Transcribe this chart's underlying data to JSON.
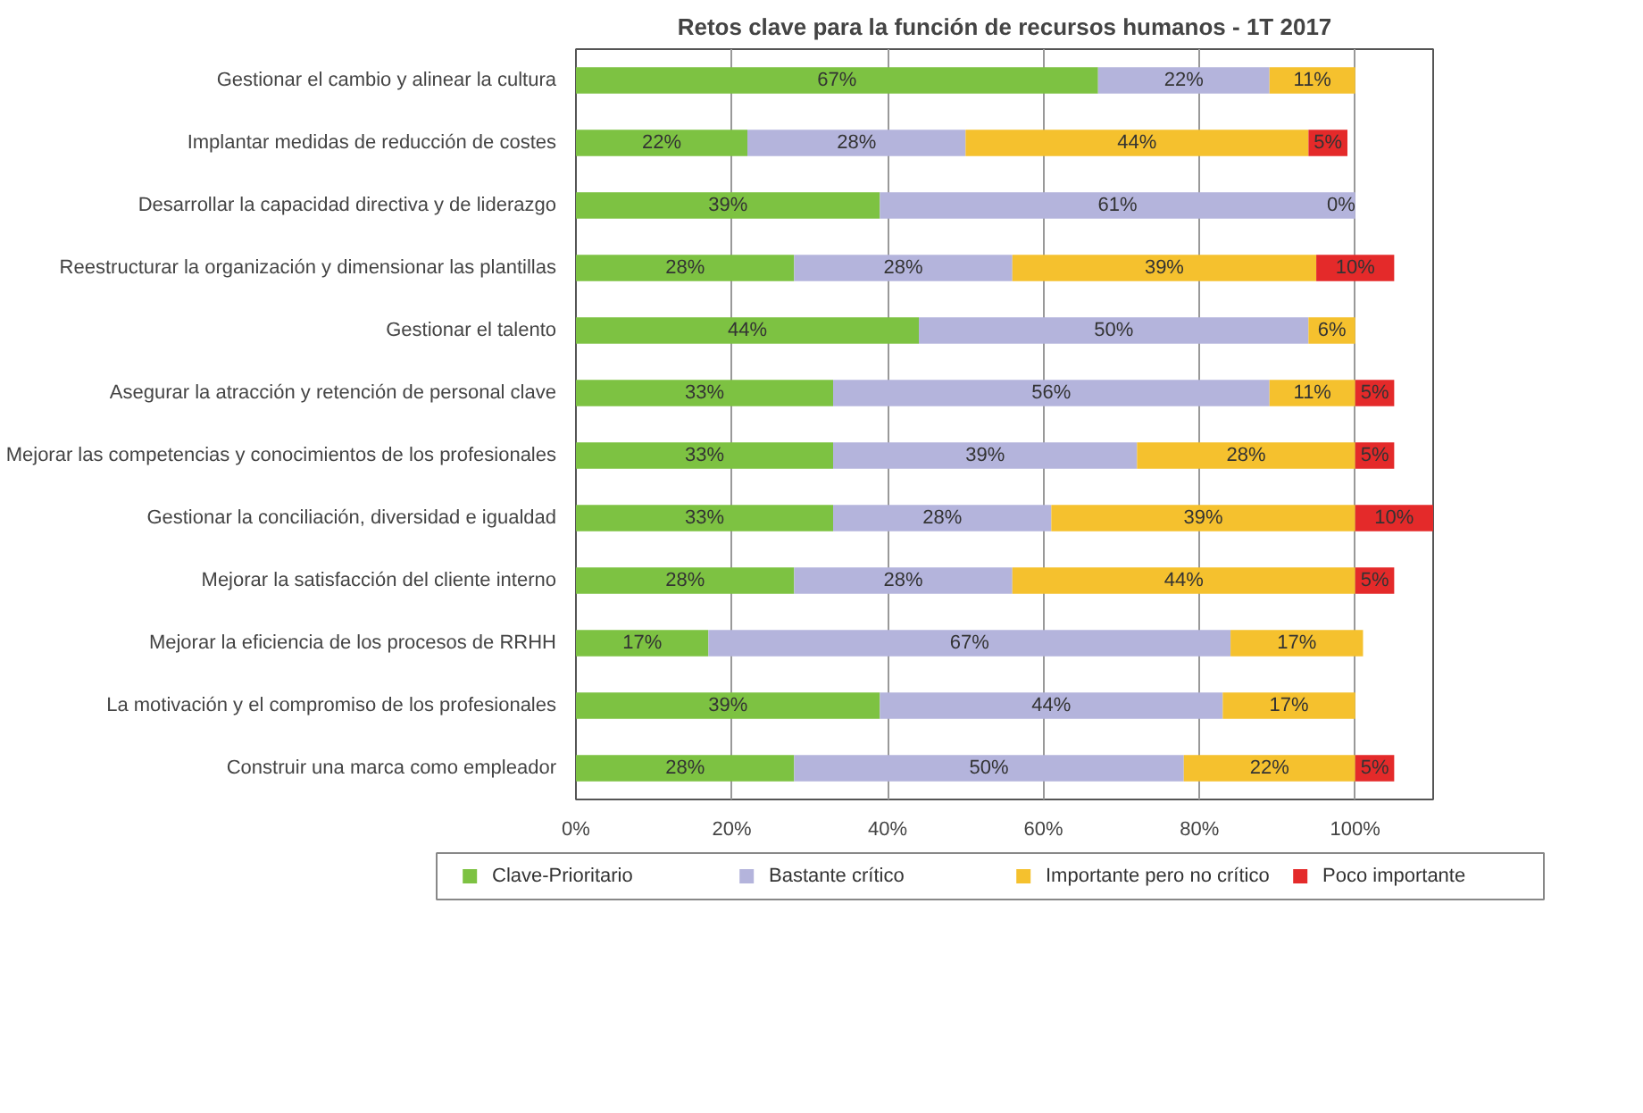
{
  "chart_data": {
    "type": "bar",
    "orientation": "horizontal",
    "stacked": true,
    "title": "Retos clave para la función de recursos humanos - 1T 2017",
    "categories": [
      "Gestionar el cambio y alinear la cultura",
      "Implantar medidas de reducción de costes",
      "Desarrollar la capacidad directiva y de liderazgo",
      "Reestructurar la organización y dimensionar las plantillas",
      "Gestionar el talento",
      "Asegurar la atracción y retención de personal clave",
      "Mejorar las competencias y conocimientos de los profesionales",
      "Gestionar la conciliación, diversidad e igualdad",
      "Mejorar la satisfacción del cliente interno",
      "Mejorar la eficiencia de los procesos de RRHH",
      "La motivación y el compromiso de los profesionales",
      "Construir una marca como empleador"
    ],
    "series": [
      {
        "name": "Clave-Prioritario",
        "color": "#7dc242",
        "values": [
          67,
          22,
          39,
          28,
          44,
          33,
          33,
          33,
          28,
          17,
          39,
          28
        ],
        "value_labels": [
          "67%",
          "22%",
          "39%",
          "28%",
          "44%",
          "33%",
          "33%",
          "33%",
          "28%",
          "17%",
          "39%",
          "28%"
        ]
      },
      {
        "name": "Bastante crítico",
        "color": "#b4b4dc",
        "values": [
          22,
          28,
          61,
          28,
          50,
          56,
          39,
          28,
          28,
          67,
          44,
          50
        ],
        "value_labels": [
          "22%",
          "28%",
          "61%",
          "28%",
          "50%",
          "56%",
          "39%",
          "28%",
          "28%",
          "67%",
          "44%",
          "50%"
        ]
      },
      {
        "name": "Importante pero no crítico",
        "color": "#f5c12e",
        "values": [
          11,
          44,
          0,
          39,
          6,
          11,
          28,
          39,
          44,
          17,
          17,
          22
        ],
        "value_labels": [
          "11%",
          "44%",
          "0%",
          "39%",
          "6%",
          "11%",
          "28%",
          "39%",
          "44%",
          "17%",
          "17%",
          "22%"
        ]
      },
      {
        "name": "Poco importante",
        "color": "#e42a2a",
        "values": [
          null,
          5,
          null,
          10,
          null,
          5,
          5,
          10,
          5,
          null,
          null,
          5
        ],
        "value_labels": [
          null,
          "5%",
          null,
          "10%",
          null,
          "5%",
          "5%",
          "10%",
          "5%",
          null,
          null,
          "5%"
        ]
      }
    ],
    "xlim": [
      0,
      110
    ],
    "xticks": [
      {
        "value": 0,
        "label": "0%"
      },
      {
        "value": 20,
        "label": "20%"
      },
      {
        "value": 40,
        "label": "40%"
      },
      {
        "value": 60,
        "label": "60%"
      },
      {
        "value": 80,
        "label": "80%"
      },
      {
        "value": 100,
        "label": "100%"
      }
    ],
    "grid": "x",
    "legend": "bottom"
  }
}
